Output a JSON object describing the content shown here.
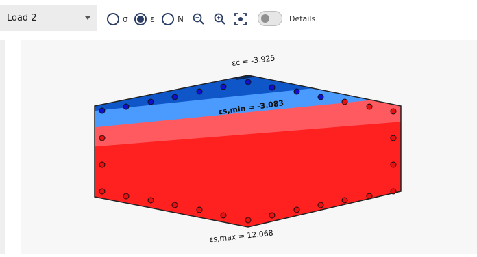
{
  "toolbar": {
    "load_select": {
      "value": "Load 2"
    },
    "radios": [
      {
        "label": "σ",
        "selected": false
      },
      {
        "label": "ε",
        "selected": true
      },
      {
        "label": "N",
        "selected": false
      }
    ],
    "tools": [
      "zoom-out-icon",
      "zoom-in-icon",
      "fit-view-icon"
    ],
    "details_toggle": {
      "label": "Details",
      "on": false
    }
  },
  "diagram": {
    "labels": {
      "ec": "εc = -3.925",
      "es_min": "εs,min = -3.083",
      "es_max": "εs,max = 12.068"
    },
    "colors": {
      "compression_dark": "#0f57c8",
      "compression_light": "#4b9bff",
      "tension_light": "#ff5a5f",
      "tension": "#ff2020",
      "outline": "#222222",
      "bar_compression": "#1010d0",
      "bar_tension": "#e81010"
    }
  }
}
